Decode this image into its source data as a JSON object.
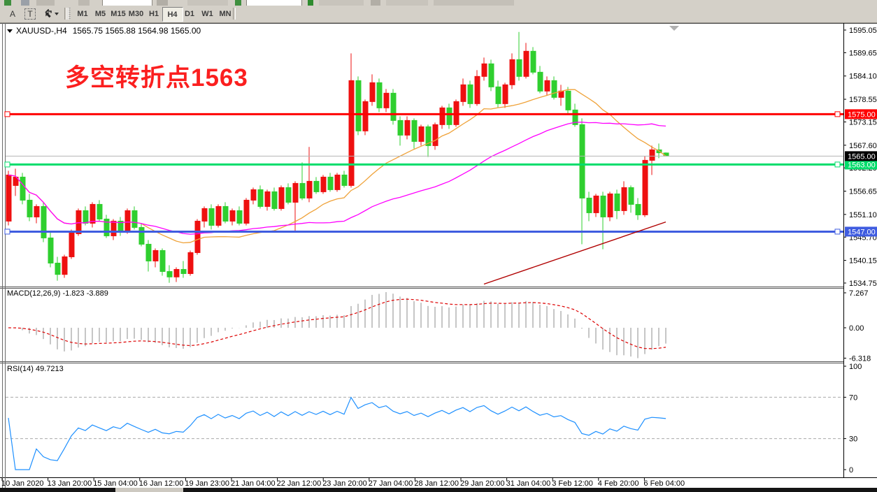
{
  "toolbar": {
    "buttons": [
      {
        "label": "A"
      },
      {
        "label": "T"
      }
    ],
    "icons": [
      "text-cursor-icon",
      "text-box-icon",
      "objects-arrows-icon",
      "dropdown-caret-icon",
      "symbol-dropdown-icon"
    ],
    "timeframes": [
      "M1",
      "M5",
      "M15",
      "M30",
      "H1",
      "H4",
      "D1",
      "W1",
      "MN"
    ],
    "active_timeframe": "H4"
  },
  "chart": {
    "title": {
      "symbol": "XAUUSD-,H4",
      "ohlc": "1565.75 1565.88 1564.98 1565.00"
    },
    "annotation": {
      "text": "多空转折点1563",
      "color": "#fb1f1f"
    },
    "price_axis_ticks": [
      "1595.05",
      "1589.65",
      "1584.10",
      "1578.55",
      "1573.15",
      "1567.60",
      "1562.20",
      "1556.65",
      "1551.10",
      "1545.70",
      "1540.15",
      "1534.75"
    ],
    "current_price": {
      "price": 1565.0,
      "label": "1565.00",
      "line_color": "#b4b4b4",
      "label_bg": "#000000"
    }
  },
  "indicators": {
    "macd": {
      "label": "MACD(12,26,9) -1.823 -3.889",
      "ticks": [
        "7.267",
        "0.00",
        "-6.318"
      ],
      "tick_values": [
        7.267,
        0.0,
        -6.318
      ],
      "histogram_color": "#c6c6c6",
      "signal_color": "#dd0000",
      "fast": 12,
      "slow": 26,
      "signal": 9
    },
    "rsi": {
      "label": "RSI(14) 49.7213",
      "ticks": [
        "100",
        "70",
        "30",
        "0"
      ],
      "tick_values": [
        100,
        70,
        30,
        0
      ],
      "levels": [
        70,
        30
      ],
      "line_color": "#1e90ff",
      "period": 14
    }
  },
  "x_axis": {
    "labels": [
      "10 Jan 2020",
      "13 Jan 20:00",
      "15 Jan 04:00",
      "16 Jan 12:00",
      "19 Jan 23:00",
      "21 Jan 04:00",
      "22 Jan 12:00",
      "23 Jan 20:00",
      "27 Jan 04:00",
      "28 Jan 12:00",
      "29 Jan 20:00",
      "31 Jan 04:00",
      "3 Feb 12:00",
      "4 Feb 20:00",
      "6 Feb 04:00"
    ]
  },
  "chart_data": {
    "type": "candlestick",
    "symbol": "XAUUSD",
    "timeframe": "H4",
    "up_color": "#ee1010",
    "down_color": "#2fcf2f",
    "price_range": [
      1534.75,
      1595.05
    ],
    "candles": [
      [
        1549.5,
        1561.5,
        1548.5,
        1560.5
      ],
      [
        1558.0,
        1562.0,
        1555.5,
        1560.0
      ],
      [
        1560.0,
        1561.0,
        1553.5,
        1554.5
      ],
      [
        1554.5,
        1556.0,
        1549.5,
        1550.5
      ],
      [
        1550.5,
        1553.5,
        1549.0,
        1553.0
      ],
      [
        1553.0,
        1554.0,
        1544.5,
        1545.5
      ],
      [
        1545.5,
        1547.0,
        1538.5,
        1539.5
      ],
      [
        1539.5,
        1541.0,
        1535.3,
        1536.8
      ],
      [
        1536.8,
        1541.5,
        1536.0,
        1541.0
      ],
      [
        1541.0,
        1547.5,
        1540.5,
        1547.0
      ],
      [
        1546.5,
        1552.5,
        1546.0,
        1552.0
      ],
      [
        1552.0,
        1553.0,
        1548.5,
        1549.0
      ],
      [
        1549.0,
        1554.0,
        1548.0,
        1553.5
      ],
      [
        1553.5,
        1554.5,
        1549.5,
        1550.0
      ],
      [
        1550.0,
        1551.0,
        1545.5,
        1546.0
      ],
      [
        1546.0,
        1550.0,
        1545.0,
        1549.5
      ],
      [
        1549.5,
        1550.5,
        1546.0,
        1547.0
      ],
      [
        1547.0,
        1552.5,
        1546.5,
        1552.0
      ],
      [
        1552.0,
        1553.0,
        1547.5,
        1548.0
      ],
      [
        1548.0,
        1549.0,
        1543.5,
        1544.0
      ],
      [
        1544.0,
        1545.0,
        1537.5,
        1540.0
      ],
      [
        1540.0,
        1543.0,
        1538.5,
        1542.5
      ],
      [
        1542.5,
        1543.0,
        1536.5,
        1537.5
      ],
      [
        1537.5,
        1539.0,
        1534.8,
        1536.2
      ],
      [
        1536.2,
        1538.5,
        1535.0,
        1538.0
      ],
      [
        1538.0,
        1540.0,
        1536.0,
        1537.0
      ],
      [
        1537.0,
        1542.5,
        1536.5,
        1542.0
      ],
      [
        1542.0,
        1550.0,
        1541.5,
        1549.5
      ],
      [
        1549.5,
        1553.0,
        1548.0,
        1552.5
      ],
      [
        1552.5,
        1553.5,
        1547.5,
        1548.5
      ],
      [
        1548.5,
        1553.5,
        1548.0,
        1553.0
      ],
      [
        1553.0,
        1554.0,
        1549.0,
        1549.5
      ],
      [
        1549.5,
        1552.5,
        1548.5,
        1552.0
      ],
      [
        1552.0,
        1553.0,
        1548.5,
        1549.0
      ],
      [
        1549.0,
        1555.0,
        1548.5,
        1554.5
      ],
      [
        1554.5,
        1557.5,
        1553.5,
        1557.0
      ],
      [
        1557.0,
        1558.0,
        1552.5,
        1553.0
      ],
      [
        1553.0,
        1557.0,
        1552.0,
        1556.5
      ],
      [
        1556.5,
        1557.5,
        1552.0,
        1552.5
      ],
      [
        1552.5,
        1558.0,
        1552.0,
        1557.5
      ],
      [
        1557.5,
        1558.5,
        1553.5,
        1554.0
      ],
      [
        1554.0,
        1559.0,
        1547.0,
        1558.5
      ],
      [
        1558.5,
        1563.5,
        1554.5,
        1555.0
      ],
      [
        1555.0,
        1567.2,
        1554.0,
        1559.0
      ],
      [
        1559.0,
        1560.0,
        1556.0,
        1556.5
      ],
      [
        1556.5,
        1560.5,
        1556.0,
        1560.0
      ],
      [
        1560.0,
        1561.0,
        1556.5,
        1557.0
      ],
      [
        1557.0,
        1561.0,
        1556.5,
        1560.5
      ],
      [
        1560.5,
        1561.5,
        1557.5,
        1558.0
      ],
      [
        1558.0,
        1589.5,
        1557.5,
        1583.0
      ],
      [
        1583.0,
        1584.0,
        1570.0,
        1571.0
      ],
      [
        1571.0,
        1578.5,
        1570.0,
        1578.0
      ],
      [
        1578.0,
        1584.5,
        1577.0,
        1582.5
      ],
      [
        1582.5,
        1583.5,
        1575.5,
        1576.5
      ],
      [
        1576.5,
        1581.0,
        1575.5,
        1580.0
      ],
      [
        1580.0,
        1581.0,
        1572.5,
        1573.5
      ],
      [
        1573.5,
        1574.5,
        1567.5,
        1570.0
      ],
      [
        1570.0,
        1574.5,
        1569.0,
        1573.5
      ],
      [
        1573.5,
        1574.0,
        1566.8,
        1568.5
      ],
      [
        1568.5,
        1572.5,
        1567.5,
        1572.0
      ],
      [
        1572.0,
        1572.5,
        1564.8,
        1567.5
      ],
      [
        1567.5,
        1573.0,
        1566.5,
        1572.5
      ],
      [
        1572.5,
        1577.0,
        1571.5,
        1576.5
      ],
      [
        1576.5,
        1577.5,
        1571.5,
        1572.5
      ],
      [
        1572.5,
        1578.5,
        1572.0,
        1578.0
      ],
      [
        1578.0,
        1583.5,
        1577.0,
        1582.0
      ],
      [
        1582.0,
        1583.0,
        1576.5,
        1577.5
      ],
      [
        1577.5,
        1585.5,
        1577.0,
        1584.0
      ],
      [
        1584.0,
        1588.5,
        1583.0,
        1587.0
      ],
      [
        1587.0,
        1588.0,
        1580.5,
        1581.5
      ],
      [
        1581.5,
        1583.0,
        1576.5,
        1577.5
      ],
      [
        1577.5,
        1582.5,
        1576.5,
        1582.0
      ],
      [
        1582.0,
        1589.5,
        1581.0,
        1588.0
      ],
      [
        1588.0,
        1594.6,
        1583.0,
        1584.0
      ],
      [
        1584.0,
        1592.0,
        1583.5,
        1590.0
      ],
      [
        1590.0,
        1591.0,
        1584.5,
        1585.0
      ],
      [
        1585.0,
        1586.5,
        1580.0,
        1580.5
      ],
      [
        1580.5,
        1584.0,
        1579.5,
        1583.0
      ],
      [
        1583.0,
        1584.0,
        1578.5,
        1579.0
      ],
      [
        1579.0,
        1582.0,
        1577.0,
        1580.5
      ],
      [
        1580.5,
        1581.5,
        1575.0,
        1576.0
      ],
      [
        1576.0,
        1577.5,
        1572.0,
        1572.5
      ],
      [
        1572.5,
        1574.0,
        1544.0,
        1555.0
      ],
      [
        1555.0,
        1556.5,
        1549.5,
        1551.5
      ],
      [
        1551.5,
        1556.0,
        1550.5,
        1555.5
      ],
      [
        1555.5,
        1556.5,
        1542.8,
        1550.5
      ],
      [
        1550.5,
        1556.5,
        1549.5,
        1556.0
      ],
      [
        1556.0,
        1557.0,
        1550.0,
        1552.0
      ],
      [
        1552.0,
        1559.0,
        1551.0,
        1557.5
      ],
      [
        1557.5,
        1558.0,
        1551.5,
        1553.5
      ],
      [
        1553.5,
        1555.0,
        1549.8,
        1551.0
      ],
      [
        1551.0,
        1565.0,
        1550.5,
        1564.0
      ],
      [
        1564.0,
        1567.5,
        1560.5,
        1566.5
      ],
      [
        1566.5,
        1568.0,
        1564.5,
        1565.8
      ],
      [
        1565.75,
        1565.88,
        1564.98,
        1565.0
      ]
    ],
    "moving_averages": [
      {
        "name": "ma-fast",
        "period": 20,
        "color": "#efa239"
      },
      {
        "name": "ma-slow",
        "period": 44,
        "color": "#ff00ff"
      }
    ],
    "hlines": [
      {
        "price": 1575.0,
        "label": "1575.00",
        "color": "#ff0000"
      },
      {
        "price": 1563.0,
        "label": "1563.00",
        "color": "#00dd6a"
      },
      {
        "price": 1547.0,
        "label": "1547.00",
        "color": "#3f5ce0"
      }
    ],
    "trendline": {
      "bar1": 68,
      "price1": 1534.5,
      "bar2": 94,
      "price2": 1549.3,
      "color": "#b00000"
    }
  }
}
